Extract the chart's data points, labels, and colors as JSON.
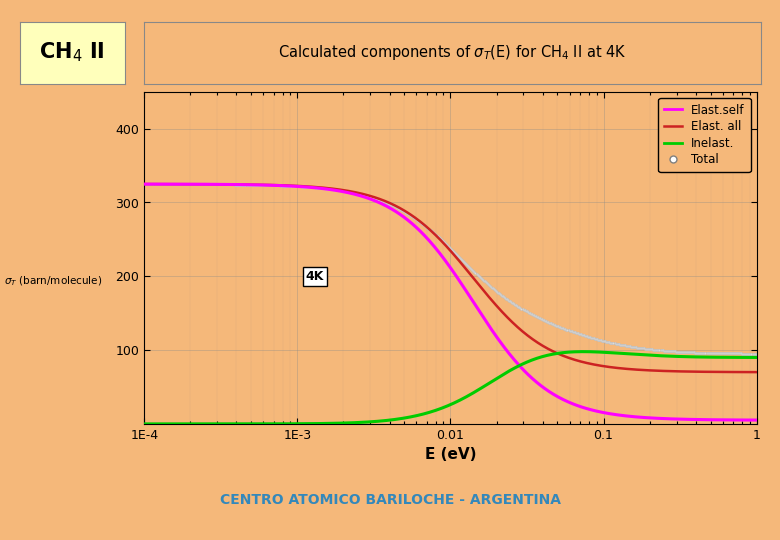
{
  "background_color": "#f5b87a",
  "plot_bg_color": "#f5b87a",
  "footer_bg_color": "#ffffff",
  "title_text": "Calculated components of σ_T(E) for CH₄ II at 4K",
  "ch4_label": "CH₄ II",
  "xlabel": "E (eV)",
  "yticks": [
    100,
    200,
    300,
    400
  ],
  "xtick_labels": [
    "1E-4",
    "1E-3",
    "0.01",
    "0.1",
    "1"
  ],
  "xtick_vals": [
    0.0001,
    0.001,
    0.01,
    0.1,
    1
  ],
  "xmin": 0.0001,
  "xmax": 1.0,
  "ymin": 0,
  "ymax": 450,
  "elast_self_color": "#ff00ff",
  "elast_all_color": "#cc2222",
  "inelast_color": "#00cc00",
  "total_dot_color": "#dddddd",
  "legend_labels": [
    "Elast.self",
    "Elast. all",
    "Inelast.",
    "Total"
  ],
  "annotation_4K": "4K",
  "footer_text": "CENTRO ATOMICO BARILOCHE - ARGENTINA",
  "footer_color": "#3388bb",
  "ylabel_text": "σ_T (barn/molecule)"
}
